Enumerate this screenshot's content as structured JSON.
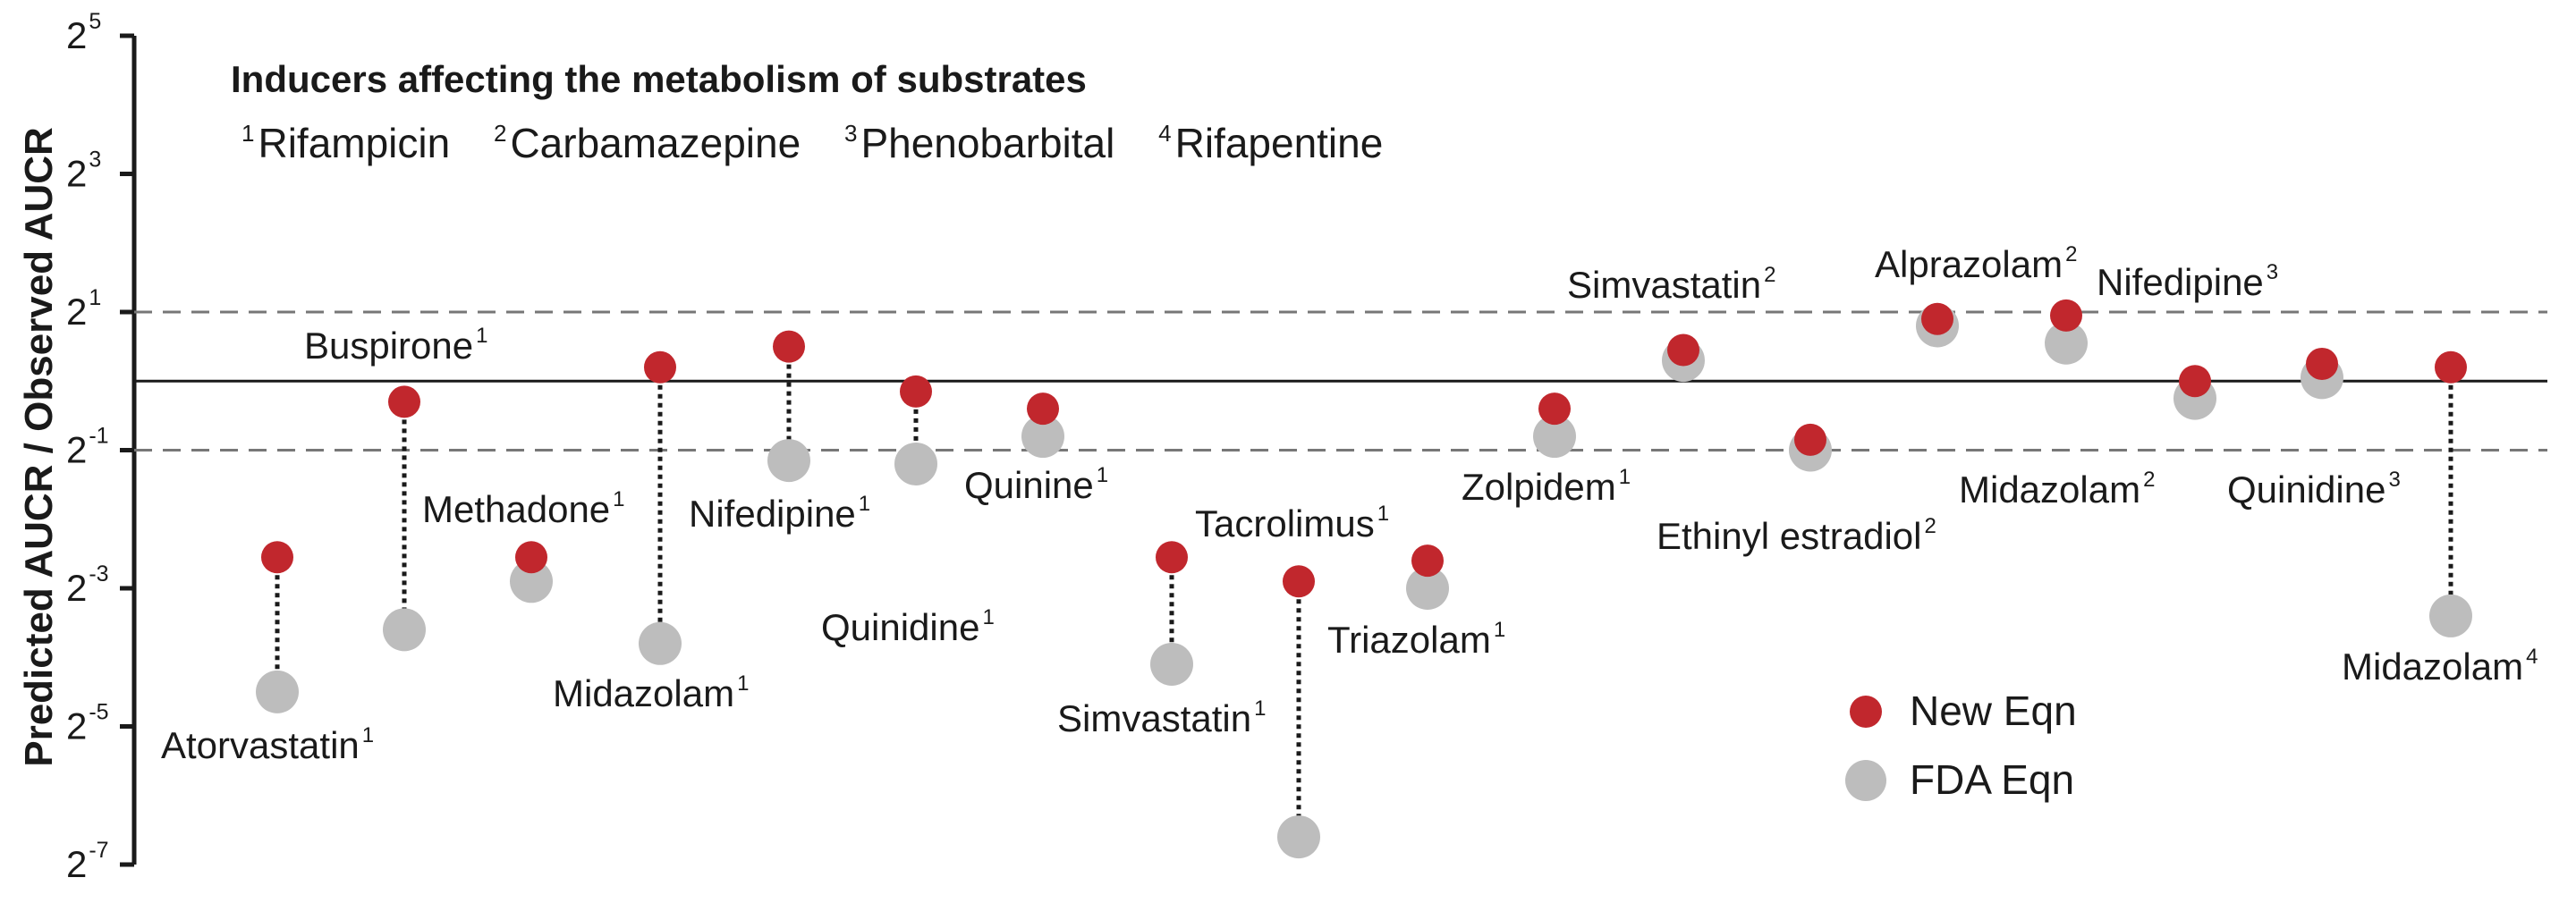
{
  "chart_data": {
    "type": "scatter",
    "title": "Inducers affecting the metabolism of substrates",
    "inducer_legend": [
      {
        "sup": "1",
        "name": "Rifampicin"
      },
      {
        "sup": "2",
        "name": "Carbamazepine"
      },
      {
        "sup": "3",
        "name": "Phenobarbital"
      },
      {
        "sup": "4",
        "name": "Rifapentine"
      }
    ],
    "ylabel": "Predicted AUCR / Observed AUCR",
    "yscale": "log2",
    "ylim_log2": [
      -7,
      5
    ],
    "yticks": [
      {
        "base": "2",
        "exp": "5",
        "log2": 5
      },
      {
        "base": "2",
        "exp": "3",
        "log2": 3
      },
      {
        "base": "2",
        "exp": "1",
        "log2": 1
      },
      {
        "base": "2",
        "exp": "-1",
        "log2": -1
      },
      {
        "base": "2",
        "exp": "-3",
        "log2": -3
      },
      {
        "base": "2",
        "exp": "-5",
        "log2": -5
      },
      {
        "base": "2",
        "exp": "-7",
        "log2": -7
      }
    ],
    "reference_lines": {
      "solid_log2": 0,
      "dashed_log2": [
        -1,
        1
      ]
    },
    "series": [
      {
        "name": "New Eqn",
        "color": "#c1272d"
      },
      {
        "name": "FDA Eqn",
        "color": "#bdbdbd"
      }
    ],
    "points": [
      {
        "drug": "Atorvastatin",
        "sup": "1",
        "new_log2": -2.55,
        "fda_log2": -4.5
      },
      {
        "drug": "Buspirone",
        "sup": "1",
        "new_log2": -0.3,
        "fda_log2": -3.6
      },
      {
        "drug": "Methadone",
        "sup": "1",
        "new_log2": -2.55,
        "fda_log2": -2.9
      },
      {
        "drug": "Midazolam",
        "sup": "1",
        "new_log2": 0.2,
        "fda_log2": -3.8
      },
      {
        "drug": "Nifedipine",
        "sup": "1",
        "new_log2": 0.5,
        "fda_log2": -1.15
      },
      {
        "drug": "Quinidine",
        "sup": "1",
        "new_log2": -0.15,
        "fda_log2": -1.2
      },
      {
        "drug": "Quinine",
        "sup": "1",
        "new_log2": -0.4,
        "fda_log2": -0.8
      },
      {
        "drug": "Simvastatin",
        "sup": "1",
        "new_log2": -2.55,
        "fda_log2": -4.1
      },
      {
        "drug": "Tacrolimus",
        "sup": "1",
        "new_log2": -2.9,
        "fda_log2": -6.6
      },
      {
        "drug": "Triazolam",
        "sup": "1",
        "new_log2": -2.6,
        "fda_log2": -3.0
      },
      {
        "drug": "Zolpidem",
        "sup": "1",
        "new_log2": -0.4,
        "fda_log2": -0.8
      },
      {
        "drug": "Simvastatin",
        "sup": "2",
        "new_log2": 0.45,
        "fda_log2": 0.3
      },
      {
        "drug": "Ethinyl estradiol",
        "sup": "2",
        "new_log2": -0.85,
        "fda_log2": -1.0
      },
      {
        "drug": "Alprazolam",
        "sup": "2",
        "new_log2": 0.9,
        "fda_log2": 0.8
      },
      {
        "drug": "Midazolam",
        "sup": "2",
        "new_log2": 0.95,
        "fda_log2": 0.55
      },
      {
        "drug": "Nifedipine",
        "sup": "3",
        "new_log2": 0.0,
        "fda_log2": -0.25
      },
      {
        "drug": "Quinidine",
        "sup": "3",
        "new_log2": 0.25,
        "fda_log2": 0.05
      },
      {
        "drug": "Midazolam",
        "sup": "4",
        "new_log2": 0.2,
        "fda_log2": -3.4
      }
    ]
  }
}
